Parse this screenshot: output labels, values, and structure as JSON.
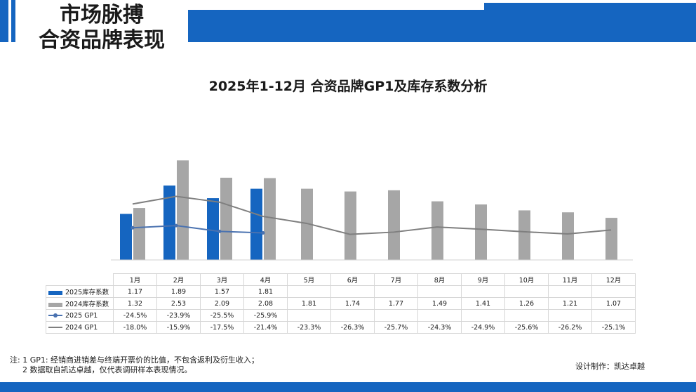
{
  "header": {
    "line1": "市场脉搏",
    "line2": "合资品牌表现"
  },
  "chart_title": "2025年1-12月 合资品牌GP1及库存系数分析",
  "colors": {
    "brand_blue": "#1565c0",
    "bar_2024": "#a6a6a6",
    "line_2025": "#4a72b0",
    "line_2024": "#7f7f7f"
  },
  "chart_data": {
    "type": "bar+line",
    "categories": [
      "1月",
      "2月",
      "3月",
      "4月",
      "5月",
      "6月",
      "7月",
      "8月",
      "9月",
      "10月",
      "11月",
      "12月"
    ],
    "series": [
      {
        "name": "2025库存系数",
        "kind": "bar",
        "values": [
          1.17,
          1.89,
          1.57,
          1.81,
          null,
          null,
          null,
          null,
          null,
          null,
          null,
          null
        ],
        "labels": [
          "1.17",
          "1.89",
          "1.57",
          "1.81",
          "",
          "",
          "",
          "",
          "",
          "",
          "",
          ""
        ]
      },
      {
        "name": "2024库存系数",
        "kind": "bar",
        "values": [
          1.32,
          2.53,
          2.09,
          2.08,
          1.81,
          1.74,
          1.77,
          1.49,
          1.41,
          1.26,
          1.21,
          1.07
        ],
        "labels": [
          "1.32",
          "2.53",
          "2.09",
          "2.08",
          "1.81",
          "1.74",
          "1.77",
          "1.49",
          "1.41",
          "1.26",
          "1.21",
          "1.07"
        ]
      },
      {
        "name": "2025 GP1",
        "kind": "line",
        "values": [
          -24.5,
          -23.9,
          -25.5,
          -25.9,
          null,
          null,
          null,
          null,
          null,
          null,
          null,
          null
        ],
        "labels": [
          "-24.5%",
          "-23.9%",
          "-25.5%",
          "-25.9%",
          "",
          "",
          "",
          "",
          "",
          "",
          "",
          ""
        ]
      },
      {
        "name": "2024 GP1",
        "kind": "line",
        "values": [
          -18.0,
          -15.9,
          -17.5,
          -21.4,
          -23.3,
          -26.3,
          -25.7,
          -24.3,
          -24.9,
          -25.6,
          -26.2,
          -25.1
        ],
        "labels": [
          "-18.0%",
          "-15.9%",
          "-17.5%",
          "-21.4%",
          "-23.3%",
          "-26.3%",
          "-25.7%",
          "-24.3%",
          "-24.9%",
          "-25.6%",
          "-26.2%",
          "-25.1%"
        ]
      }
    ]
  },
  "footnote": {
    "line1": "注: 1 GP1: 经销商进销差与终端开票价的比值，不包含返利及衍生收入；",
    "line2": "2 数据取自凯达卓越，仅代表调研样本表现情况。"
  },
  "designer": "设计制作：凯达卓越"
}
